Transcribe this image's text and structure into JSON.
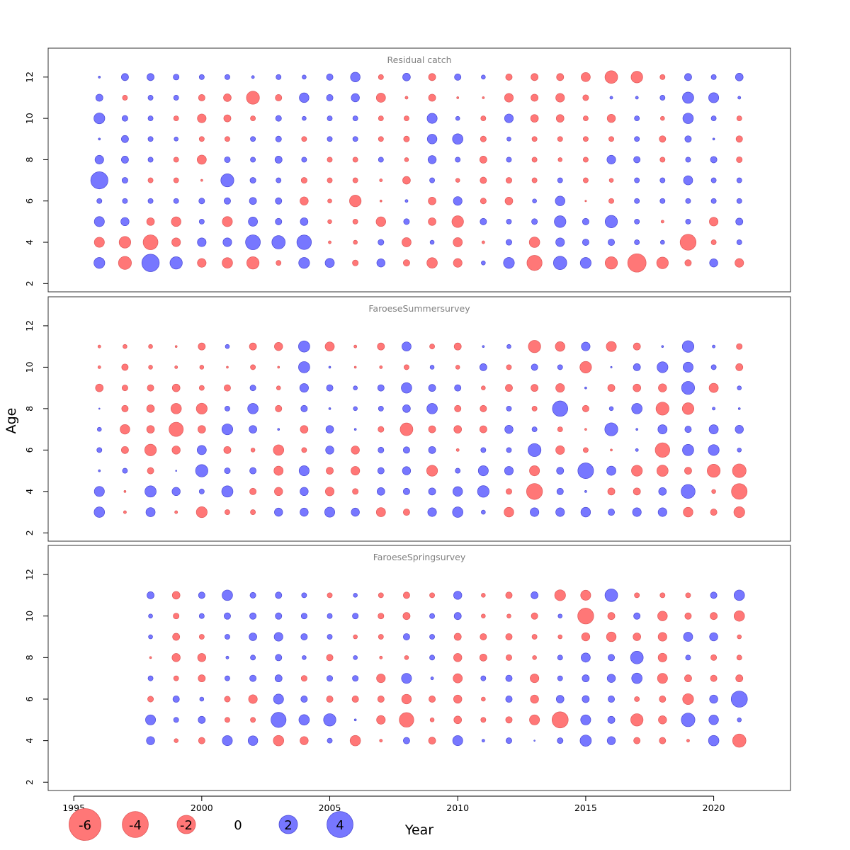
{
  "chart_data": {
    "type": "bubble",
    "xlabel": "Year",
    "ylabel": "Age",
    "xlim": [
      1994,
      2023
    ],
    "ylim": [
      1.6,
      13.4
    ],
    "x_ticks": [
      1995,
      2000,
      2005,
      2010,
      2015,
      2020
    ],
    "y_ticks": [
      2,
      4,
      6,
      8,
      10,
      12
    ],
    "colors": {
      "positive": "#7777ff",
      "negative": "#ff7777",
      "positive_edge": "#4a4ad6",
      "negative_edge": "#e05a5a",
      "panel_title": "#808080"
    },
    "legend": {
      "placement": "bottom-left",
      "values": [
        -6,
        -4,
        -2,
        0,
        2,
        4
      ],
      "labels": [
        "-6",
        "-4",
        "-2",
        "0",
        "2",
        "4"
      ]
    },
    "panels": [
      {
        "title": "Residual catch",
        "years": [
          1996,
          1997,
          1998,
          1999,
          2000,
          2001,
          2002,
          2003,
          2004,
          2005,
          2006,
          2007,
          2008,
          2009,
          2010,
          2011,
          2012,
          2013,
          2014,
          2015,
          2016,
          2017,
          2018,
          2019,
          2020,
          2021
        ],
        "ages": [
          3,
          4,
          5,
          6,
          7,
          8,
          9,
          10,
          11,
          12
        ],
        "residuals": [
          [
            1.4,
            -2.0,
            3.6,
            1.8,
            -0.9,
            -1.3,
            -1.8,
            -0.3,
            1.4,
            1.0,
            -0.4,
            0.8,
            -0.5,
            -1.3,
            -0.9,
            0.2,
            1.4,
            -2.7,
            2.1,
            1.4,
            -1.8,
            -4.0,
            -1.6,
            -0.5,
            0.8,
            -0.9
          ],
          [
            -1.2,
            -1.6,
            -2.6,
            -0.9,
            0.9,
            0.9,
            2.6,
            2.1,
            2.5,
            -0.1,
            -0.2,
            0.4,
            -1.0,
            0.2,
            -1.0,
            -0.1,
            0.4,
            -1.3,
            0.9,
            0.5,
            0.5,
            0.3,
            0.2,
            -3.0,
            -0.3,
            0.3
          ],
          [
            1.2,
            0.8,
            -0.7,
            -1.1,
            0.3,
            -1.2,
            1.0,
            0.5,
            0.7,
            -0.2,
            -0.3,
            -1.1,
            0.4,
            -0.7,
            -1.6,
            0.5,
            0.3,
            0.4,
            1.6,
            0.5,
            1.8,
            0.3,
            -0.1,
            0.3,
            -0.9,
            0.6
          ],
          [
            0.3,
            0.3,
            0.3,
            0.3,
            0.4,
            0.5,
            0.6,
            0.5,
            -0.8,
            -0.2,
            -1.6,
            -0.05,
            0.1,
            -0.7,
            0.9,
            -0.4,
            -0.7,
            0.2,
            1.1,
            -0.03,
            -0.3,
            0.3,
            0.3,
            0.3,
            0.3,
            0.3
          ],
          [
            3.5,
            0.4,
            -0.3,
            -0.3,
            -0.05,
            2.0,
            0.4,
            0.3,
            -0.4,
            -0.3,
            -0.3,
            -0.1,
            -0.7,
            0.3,
            -0.2,
            -0.5,
            -0.4,
            -0.3,
            0.3,
            -0.3,
            -0.2,
            0.3,
            0.3,
            1.0,
            0.3,
            0.3
          ],
          [
            0.9,
            0.6,
            0.3,
            -0.3,
            -1.0,
            0.4,
            0.3,
            0.6,
            0.3,
            -0.3,
            -0.3,
            0.3,
            -0.2,
            0.8,
            0.3,
            -0.6,
            0.3,
            -0.3,
            -0.2,
            -0.3,
            0.9,
            0.5,
            -0.3,
            0.3,
            0.5,
            -0.4
          ],
          [
            0.05,
            0.6,
            0.3,
            0.2,
            -0.3,
            -0.3,
            0.3,
            0.4,
            -0.3,
            0.3,
            0.3,
            -0.3,
            -0.4,
            1.1,
            1.3,
            -0.4,
            0.2,
            -0.3,
            -0.3,
            -0.3,
            -0.3,
            0.3,
            -0.5,
            0.5,
            0.05,
            -0.5
          ],
          [
            1.4,
            0.4,
            0.3,
            -0.3,
            -0.9,
            -0.6,
            -0.3,
            0.4,
            0.2,
            0.3,
            0.3,
            -0.3,
            -0.3,
            1.2,
            0.2,
            -0.3,
            0.9,
            -0.7,
            -0.7,
            -0.3,
            -0.8,
            0.3,
            -0.2,
            1.3,
            0.3,
            -0.3
          ],
          [
            0.6,
            -0.3,
            0.3,
            0.3,
            -0.5,
            -0.7,
            -2.0,
            -0.5,
            1.1,
            0.5,
            0.8,
            -1.0,
            -0.1,
            -0.6,
            -0.05,
            -0.05,
            -0.9,
            -0.6,
            -0.9,
            -0.4,
            0.1,
            0.1,
            0.3,
            1.5,
            1.2,
            0.1
          ],
          [
            0.05,
            0.6,
            0.6,
            0.4,
            0.3,
            0.3,
            0.1,
            0.3,
            0.2,
            0.5,
            1.1,
            -0.3,
            0.7,
            -0.6,
            0.5,
            0.2,
            -0.5,
            -0.6,
            -0.6,
            -1.0,
            -1.9,
            -1.6,
            -0.3,
            0.6,
            0.3,
            0.7
          ]
        ]
      },
      {
        "title": "FaroeseSummersurvey",
        "years": [
          1996,
          1997,
          1998,
          1999,
          2000,
          2001,
          2002,
          2003,
          2004,
          2005,
          2006,
          2007,
          2008,
          2009,
          2010,
          2011,
          2012,
          2013,
          2014,
          2015,
          2016,
          2017,
          2018,
          2019,
          2020,
          2021
        ],
        "ages": [
          3,
          4,
          5,
          6,
          7,
          8,
          9,
          10,
          11
        ],
        "residuals": [
          [
            1.3,
            -0.1,
            1.0,
            -0.1,
            -1.4,
            -0.3,
            -0.3,
            0.8,
            0.8,
            1.2,
            0.8,
            -1.0,
            -0.5,
            0.9,
            1.3,
            0.2,
            -1.1,
            0.9,
            0.9,
            1.1,
            0.5,
            0.9,
            0.9,
            -1.1,
            -0.5,
            -1.4
          ],
          [
            1.2,
            -0.05,
            1.5,
            0.8,
            0.3,
            1.5,
            -0.5,
            -0.8,
            0.8,
            -0.9,
            -0.4,
            0.7,
            0.5,
            0.6,
            1.1,
            1.6,
            -0.4,
            -3.0,
            0.5,
            0.05,
            -0.6,
            -0.6,
            0.7,
            2.3,
            -0.2,
            -2.9
          ],
          [
            0.05,
            0.3,
            -0.5,
            0.02,
            1.8,
            0.4,
            0.5,
            -1.0,
            1.2,
            -0.6,
            -0.9,
            0.5,
            0.8,
            -1.4,
            0.3,
            1.2,
            0.9,
            -1.2,
            0.6,
            2.9,
            1.0,
            -1.4,
            -1.5,
            -0.6,
            -2.0,
            -2.2
          ],
          [
            0.3,
            -0.6,
            -1.6,
            -0.8,
            1.0,
            -0.6,
            -0.2,
            -1.3,
            -0.3,
            0.8,
            -0.8,
            0.4,
            0.5,
            0.6,
            -0.1,
            0.3,
            0.3,
            2.0,
            -0.9,
            -0.3,
            -0.05,
            0.1,
            -2.5,
            1.5,
            1.4,
            0.2
          ],
          [
            0.2,
            -1.1,
            -0.7,
            -2.4,
            -0.7,
            1.4,
            0.7,
            0.05,
            -0.7,
            0.7,
            0.05,
            -0.4,
            -1.9,
            -0.6,
            -0.7,
            -0.6,
            0.8,
            0.3,
            -0.3,
            -0.05,
            2.0,
            0.05,
            1.0,
            0.5,
            1.0,
            0.8
          ],
          [
            0.02,
            -0.5,
            -0.7,
            -1.3,
            -1.4,
            0.3,
            1.3,
            -0.5,
            0.5,
            0.05,
            0.2,
            0.3,
            0.7,
            1.3,
            -0.5,
            -0.5,
            0.3,
            -0.3,
            2.8,
            -0.5,
            0.2,
            1.3,
            -2.0,
            -1.6,
            0.1,
            0.05
          ],
          [
            -0.7,
            -0.4,
            -0.5,
            -0.7,
            -0.3,
            -0.5,
            0.4,
            -0.2,
            0.9,
            0.5,
            0.2,
            0.5,
            1.3,
            0.6,
            0.5,
            -0.2,
            -0.6,
            -0.6,
            -0.9,
            0.05,
            -0.6,
            -0.7,
            -0.8,
            2.0,
            -1.0,
            0.2
          ],
          [
            -0.1,
            -0.5,
            -0.2,
            -0.1,
            -0.2,
            -0.05,
            -0.3,
            -0.05,
            1.5,
            0.05,
            -0.05,
            -0.1,
            -0.3,
            0.2,
            -0.2,
            0.6,
            -0.3,
            0.5,
            0.3,
            -1.6,
            0.03,
            0.6,
            1.4,
            1.2,
            0.3,
            -0.6
          ],
          [
            -0.1,
            -0.2,
            -0.2,
            -0.05,
            -0.6,
            0.2,
            -0.6,
            -0.8,
            1.5,
            -1.0,
            -0.1,
            -0.6,
            1.0,
            -0.3,
            -0.6,
            0.05,
            0.2,
            -1.8,
            -1.1,
            0.9,
            -1.2,
            -0.6,
            0.05,
            1.6,
            0.1,
            -0.4
          ]
        ]
      },
      {
        "title": "FaroeseSpringsurvey",
        "years": [
          1998,
          1999,
          2000,
          2001,
          2002,
          2003,
          2004,
          2005,
          2006,
          2007,
          2008,
          2009,
          2010,
          2011,
          2012,
          2013,
          2014,
          2015,
          2016,
          2017,
          2018,
          2019,
          2020,
          2021
        ],
        "ages": [
          4,
          5,
          6,
          7,
          8,
          9,
          10,
          11
        ],
        "residuals": [
          [
            0.8,
            -0.2,
            -0.5,
            1.2,
            1.1,
            -1.3,
            -0.8,
            0.3,
            -1.3,
            -0.1,
            0.5,
            -0.6,
            1.2,
            0.1,
            0.4,
            0.02,
            0.4,
            1.5,
            0.8,
            -0.5,
            -0.5,
            -0.1,
            1.3,
            -2.1
          ],
          [
            1.2,
            0.3,
            0.6,
            -0.3,
            -0.3,
            2.7,
            1.3,
            1.8,
            0.05,
            -0.9,
            -2.5,
            -0.2,
            -0.7,
            -0.3,
            -0.5,
            -1.2,
            -3.1,
            1.2,
            0.6,
            -1.8,
            -0.8,
            2.2,
            1.1,
            0.2
          ],
          [
            -0.4,
            0.5,
            0.2,
            -0.4,
            -0.9,
            1.2,
            0.5,
            -0.5,
            -0.5,
            -0.5,
            -1.1,
            -0.5,
            -0.8,
            -0.2,
            0.5,
            -0.8,
            0.7,
            0.6,
            0.5,
            -0.3,
            -0.5,
            -1.4,
            0.8,
            3.1
          ],
          [
            0.3,
            -0.3,
            -0.6,
            0.3,
            0.5,
            0.6,
            -0.4,
            0.4,
            0.4,
            -0.9,
            1.2,
            0.1,
            -1.0,
            0.3,
            0.5,
            -0.9,
            0.3,
            0.6,
            0.8,
            1.3,
            -1.2,
            -0.6,
            -0.5,
            -0.6
          ],
          [
            -0.05,
            -0.8,
            -0.8,
            0.1,
            0.3,
            0.5,
            0.2,
            -0.5,
            0.2,
            -0.1,
            -0.2,
            0.3,
            -0.8,
            -0.6,
            -0.4,
            -0.2,
            0.3,
            1.0,
            0.5,
            1.9,
            -0.9,
            0.3,
            -0.4,
            -0.3
          ],
          [
            0.2,
            -0.6,
            -0.3,
            0.3,
            0.7,
            0.9,
            0.5,
            0.3,
            -0.2,
            -0.3,
            0.5,
            0.3,
            -0.6,
            -0.5,
            -0.5,
            -0.3,
            -0.2,
            -0.8,
            -1.1,
            -0.7,
            -0.9,
            1.0,
            0.8,
            -0.2
          ],
          [
            0.2,
            -0.4,
            0.3,
            0.5,
            0.5,
            0.5,
            0.4,
            0.3,
            0.4,
            -0.4,
            -0.6,
            0.3,
            0.6,
            -0.2,
            -0.2,
            -0.5,
            0.2,
            -3.0,
            -0.6,
            0.5,
            -1.1,
            -0.5,
            -0.6,
            -1.3
          ],
          [
            0.6,
            -0.7,
            0.5,
            1.3,
            0.4,
            0.5,
            0.3,
            -0.3,
            0.2,
            -0.3,
            -0.5,
            -0.3,
            0.8,
            -0.2,
            -0.5,
            0.6,
            -1.4,
            -1.2,
            1.9,
            -0.3,
            -0.3,
            -0.3,
            0.5,
            1.3
          ]
        ]
      }
    ]
  }
}
